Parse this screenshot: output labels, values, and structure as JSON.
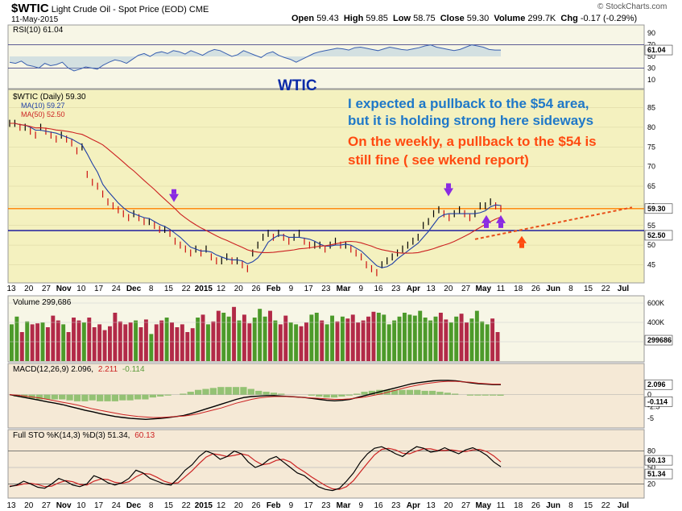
{
  "header": {
    "symbol": "$WTIC",
    "name": "Light Crude Oil - Spot Price (EOD)",
    "exchange": "CME",
    "date": "11-May-2015",
    "open_label": "Open",
    "open": "59.43",
    "high_label": "High",
    "high": "59.85",
    "low_label": "Low",
    "low": "58.75",
    "close_label": "Close",
    "close": "59.30",
    "volume_label": "Volume",
    "volume": "299.7K",
    "chg_label": "Chg",
    "chg": "-0.17 (-0.29%)",
    "brand": "© StockCharts.com"
  },
  "chart_data": [
    {
      "type": "line",
      "panel": "rsi",
      "legend": "RSI(10) 61.04",
      "current_label": "61.04",
      "y_ticks": [
        10,
        30,
        50,
        70,
        90
      ],
      "ylim": [
        0,
        100
      ],
      "levels": [
        30,
        70
      ],
      "series": [
        {
          "values": [
            40,
            38,
            42,
            35,
            33,
            30,
            38,
            34,
            36,
            40,
            30,
            25,
            28,
            32,
            30,
            28,
            35,
            40,
            44,
            42,
            38,
            45,
            52,
            55,
            50,
            56,
            58,
            55,
            60,
            58,
            54,
            60,
            56,
            52,
            58,
            62,
            60,
            55,
            50,
            53,
            60,
            56,
            52,
            48,
            55,
            58,
            52,
            48,
            45,
            40,
            45,
            50,
            55,
            58,
            60,
            62,
            64,
            63,
            61,
            65,
            66,
            64,
            62,
            60,
            63,
            66,
            64,
            62,
            61,
            63,
            65,
            68,
            70,
            66,
            64,
            62,
            60,
            62,
            66,
            70,
            68,
            66,
            62,
            61,
            61.04
          ]
        }
      ]
    },
    {
      "type": "line",
      "panel": "price",
      "title": "WTIC",
      "legend": [
        "$WTIC (Daily) 59.30",
        "MA(10) 59.27",
        "MA(50) 52.50"
      ],
      "series_colors": {
        "price": "#000000",
        "ma10": "#1f3fa6",
        "ma50": "#cc2222"
      },
      "x_tick_labels": [
        "13",
        "20",
        "27",
        "Nov",
        "10",
        "17",
        "24",
        "Dec",
        "8",
        "15",
        "22",
        "2015",
        "12",
        "20",
        "26",
        "Feb",
        "9",
        "17",
        "23",
        "Mar",
        "9",
        "16",
        "23",
        "Apr",
        "13",
        "20",
        "27",
        "May",
        "11",
        "18",
        "26",
        "Jun",
        "8",
        "15",
        "22",
        "Jul"
      ],
      "y_ticks": [
        45,
        50,
        55,
        60,
        65,
        70,
        75,
        80,
        85
      ],
      "ylim": [
        41,
        89
      ],
      "price_label": "59.30",
      "ma50_label": "52.50",
      "hlines": [
        {
          "value": 59.3,
          "color": "#ff7f00"
        },
        {
          "value": 53.7,
          "color": "#0a0a9c"
        }
      ],
      "annotations": [
        {
          "text": "I expected a pullback to the $54 area,",
          "color": "#1f78c8"
        },
        {
          "text": "but it is holding strong here sideways",
          "color": "#1f78c8"
        },
        {
          "text": "On the weekly, a pullback to the $54 is",
          "color": "#ff4a10"
        },
        {
          "text": "still fine ( see wkend report)",
          "color": "#ff4a10"
        }
      ],
      "series": [
        {
          "values": [
            81,
            81,
            80,
            80,
            79,
            78,
            80,
            79,
            78,
            77,
            78,
            77,
            76,
            74,
            75,
            68,
            66,
            65,
            63,
            61,
            60,
            59,
            58,
            57,
            58,
            57,
            56,
            56,
            55,
            54,
            54,
            53,
            51,
            50,
            49,
            48,
            49,
            48,
            49,
            47,
            46,
            46,
            47,
            46,
            46,
            45,
            44,
            48,
            50,
            52,
            53,
            52,
            53,
            52,
            51,
            52,
            53,
            51,
            50,
            50,
            50,
            49,
            50,
            51,
            50,
            50,
            49,
            48,
            47,
            45,
            44,
            43,
            45,
            46,
            47,
            48,
            49,
            50,
            51,
            52,
            55,
            56,
            58,
            59,
            58,
            57,
            58,
            59,
            58,
            57,
            58,
            60,
            60,
            61,
            60,
            59.3
          ]
        }
      ]
    },
    {
      "type": "bar",
      "panel": "volume",
      "legend": "Volume 299,686",
      "current_label": "299686",
      "y_ticks": [
        "200K",
        "400K",
        "600K"
      ],
      "ylim": [
        0,
        650
      ],
      "values": [
        380,
        460,
        300,
        410,
        380,
        390,
        400,
        350,
        470,
        420,
        380,
        300,
        450,
        420,
        400,
        450,
        350,
        380,
        320,
        360,
        500,
        410,
        380,
        400,
        420,
        350,
        430,
        280,
        380,
        420,
        450,
        400,
        350,
        380,
        300,
        340,
        450,
        480,
        380,
        410,
        520,
        500,
        460,
        560,
        420,
        480,
        390,
        450,
        540,
        460,
        520,
        420,
        380,
        470,
        400,
        380,
        360,
        400,
        480,
        500,
        420,
        380,
        470,
        410,
        460,
        440,
        480,
        400,
        420,
        460,
        510,
        500,
        480,
        380,
        420,
        460,
        500,
        480,
        470,
        520,
        450,
        420,
        460,
        500,
        430,
        400,
        460,
        490,
        400,
        440,
        520,
        410,
        380,
        440,
        300
      ]
    },
    {
      "type": "line",
      "panel": "macd",
      "legend": [
        "MACD(12,26,9) 2.096,",
        "2.211",
        "-0.114"
      ],
      "current_labels": [
        "2.096",
        "-0.114"
      ],
      "y_ticks": [
        -5.0,
        -2.5,
        0.0,
        2.5
      ],
      "ylim": [
        -6.5,
        4
      ],
      "series": [
        {
          "values": [
            0.0,
            -0.3,
            -0.6,
            -0.9,
            -1.2,
            -1.5,
            -1.8,
            -2.1,
            -2.5,
            -2.9,
            -3.3,
            -3.6,
            -4.0,
            -4.3,
            -4.6,
            -4.8,
            -5.0,
            -5.1,
            -5.2,
            -5.1,
            -5.0,
            -4.8,
            -4.6,
            -4.4,
            -4.0,
            -3.5,
            -3.0,
            -2.5,
            -2.0,
            -1.5,
            -1.0,
            -0.6,
            -0.4,
            -0.3,
            -0.2,
            -0.2,
            -0.3,
            -0.4,
            -0.5,
            -0.6,
            -0.8,
            -1.0,
            -1.2,
            -1.3,
            -1.2,
            -1.0,
            -0.6,
            -0.2,
            0.2,
            0.6,
            1.0,
            1.4,
            1.8,
            2.2,
            2.5,
            2.7,
            2.9,
            3.0,
            3.0,
            2.9,
            2.7,
            2.5,
            2.3,
            2.2,
            2.1,
            2.096
          ]
        },
        {
          "values": [
            0.0,
            -0.1,
            -0.3,
            -0.5,
            -0.7,
            -1.0,
            -1.3,
            -1.6,
            -1.9,
            -2.2,
            -2.6,
            -3.0,
            -3.3,
            -3.6,
            -3.9,
            -4.2,
            -4.4,
            -4.6,
            -4.7,
            -4.8,
            -4.8,
            -4.7,
            -4.6,
            -4.5,
            -4.3,
            -4.0,
            -3.6,
            -3.2,
            -2.8,
            -2.3,
            -1.8,
            -1.4,
            -1.0,
            -0.7,
            -0.5,
            -0.4,
            -0.4,
            -0.4,
            -0.5,
            -0.6,
            -0.7,
            -0.8,
            -0.9,
            -1.0,
            -1.0,
            -0.9,
            -0.7,
            -0.5,
            -0.2,
            0.1,
            0.5,
            0.9,
            1.3,
            1.7,
            2.0,
            2.3,
            2.5,
            2.7,
            2.8,
            2.8,
            2.7,
            2.6,
            2.4,
            2.3,
            2.2,
            2.211
          ]
        }
      ]
    },
    {
      "type": "line",
      "panel": "stochastic",
      "legend": [
        "Full STO %K(14,3) %D(3) 51.34,",
        "60.13"
      ],
      "current_labels": [
        "60.13",
        "51.34"
      ],
      "y_ticks": [
        20,
        50,
        80
      ],
      "ylim": [
        0,
        100
      ],
      "levels": [
        20,
        50,
        80
      ],
      "series": [
        {
          "values": [
            15,
            18,
            25,
            20,
            14,
            12,
            20,
            30,
            25,
            18,
            15,
            20,
            35,
            30,
            22,
            18,
            22,
            30,
            45,
            40,
            30,
            25,
            20,
            18,
            30,
            45,
            55,
            70,
            80,
            75,
            65,
            70,
            80,
            75,
            60,
            50,
            55,
            65,
            70,
            60,
            50,
            40,
            35,
            25,
            15,
            10,
            8,
            12,
            25,
            40,
            60,
            75,
            85,
            88,
            82,
            75,
            70,
            80,
            88,
            85,
            78,
            80,
            86,
            80,
            75,
            82,
            86,
            80,
            72,
            60,
            51.34
          ]
        },
        {
          "values": [
            16,
            17,
            20,
            21,
            19,
            15,
            16,
            22,
            26,
            24,
            19,
            18,
            25,
            29,
            28,
            23,
            21,
            24,
            33,
            39,
            38,
            32,
            25,
            21,
            22,
            33,
            44,
            57,
            69,
            75,
            73,
            70,
            72,
            75,
            72,
            62,
            55,
            57,
            63,
            65,
            60,
            50,
            42,
            33,
            25,
            17,
            11,
            10,
            15,
            26,
            42,
            58,
            73,
            83,
            85,
            82,
            76,
            75,
            80,
            84,
            84,
            81,
            81,
            82,
            80,
            79,
            82,
            83,
            79,
            71,
            60.13
          ]
        }
      ]
    }
  ]
}
